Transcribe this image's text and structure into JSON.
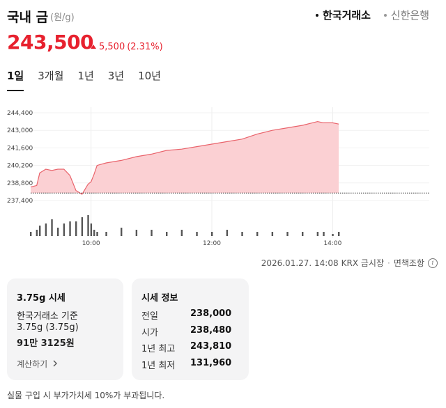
{
  "header": {
    "title": "국내 금",
    "unit": "(원/g)",
    "sources": [
      {
        "label": "한국거래소",
        "active": true
      },
      {
        "label": "신한은행",
        "active": false
      }
    ]
  },
  "price": {
    "value": "243,500",
    "change": "5,500",
    "change_pct": "(2.31%)",
    "direction": "up"
  },
  "periods": [
    "1일",
    "3개월",
    "1년",
    "3년",
    "10년"
  ],
  "active_period": "1일",
  "chart_data": {
    "type": "area",
    "y_ticks": [
      "244,400",
      "243,000",
      "241,600",
      "240,200",
      "238,800",
      "237,400"
    ],
    "x_ticks": [
      "10:00",
      "12:00",
      "14:00"
    ],
    "ylim": [
      237400,
      244400
    ],
    "baseline": 238000,
    "series": [
      {
        "x": [
          9.0,
          9.1,
          9.15,
          9.25,
          9.35,
          9.45,
          9.55,
          9.65,
          9.75,
          9.85,
          9.95,
          10.0,
          10.05,
          10.1,
          10.25,
          10.5,
          10.75,
          11.0,
          11.25,
          11.5,
          11.75,
          12.0,
          12.25,
          12.5,
          12.75,
          13.0,
          13.25,
          13.5,
          13.75,
          13.85,
          14.0,
          14.1
        ],
        "y": [
          238480,
          238600,
          239600,
          239900,
          239800,
          239900,
          239900,
          239400,
          238200,
          237900,
          238700,
          238900,
          239500,
          240200,
          240400,
          240600,
          240900,
          241100,
          241400,
          241500,
          241700,
          241900,
          242100,
          242300,
          242700,
          243000,
          243200,
          243400,
          243700,
          243600,
          243600,
          243500
        ],
        "volume": [
          2,
          3,
          5,
          6,
          8,
          4,
          6,
          7,
          7,
          9,
          10,
          6,
          3,
          2,
          2,
          4,
          3,
          3,
          2,
          3,
          2,
          2,
          3,
          2,
          2,
          2,
          2,
          2,
          2,
          2,
          1,
          2
        ]
      }
    ]
  },
  "timestamp": {
    "datetime": "2026.01.27. 14:08",
    "market": "KRX 금시장",
    "disclaimer": "면책조항",
    "info_icon": "info-icon"
  },
  "calc_card": {
    "title": "3.75g 시세",
    "basis": "한국거래소 기준",
    "weight": "3.75g (3.75g)",
    "amount": "91만 3125원",
    "link": "계산하기"
  },
  "info_card": {
    "title": "시세 정보",
    "rows": [
      {
        "label": "전일",
        "value": "238,000"
      },
      {
        "label": "시가",
        "value": "238,480"
      },
      {
        "label": "1년 최고",
        "value": "243,810"
      },
      {
        "label": "1년 최저",
        "value": "131,960"
      }
    ]
  },
  "footnote": "실물 구입 시 부가가치세 10%가 부과됩니다.",
  "colors": {
    "up": "#e7212e",
    "area_fill": "#fbd0d3",
    "area_line": "#e9636b",
    "volume_bar": "#555555"
  }
}
